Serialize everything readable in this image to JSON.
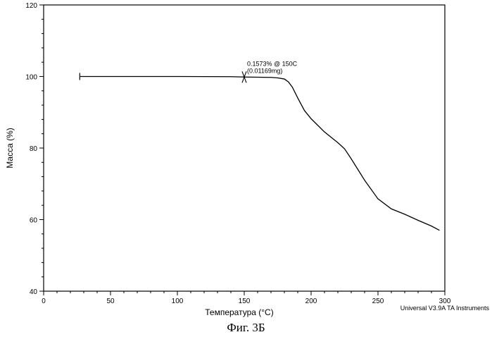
{
  "chart_data": {
    "type": "line",
    "title": "",
    "xlabel": "Температура (°C)",
    "ylabel": "Масса (%)",
    "xlim": [
      0,
      300
    ],
    "ylim": [
      40,
      120
    ],
    "xticks": [
      0,
      50,
      100,
      150,
      200,
      250,
      300
    ],
    "yticks": [
      40,
      60,
      80,
      100,
      120
    ],
    "grid": false,
    "series": [
      {
        "x": [
          27,
          60,
          100,
          140,
          150,
          160,
          170,
          175,
          180,
          183,
          186,
          190,
          195,
          200,
          210,
          220,
          225,
          230,
          240,
          250,
          260,
          270,
          280,
          290,
          296
        ],
        "y": [
          100.0,
          100.0,
          100.0,
          99.95,
          99.85,
          99.8,
          99.75,
          99.6,
          99.3,
          98.5,
          97.0,
          94.0,
          90.5,
          88.2,
          84.5,
          81.5,
          79.8,
          77.0,
          71.0,
          65.8,
          63.0,
          61.5,
          59.8,
          58.2,
          57.0
        ]
      }
    ],
    "annotation": {
      "x": 150,
      "y": 99.85,
      "line1": "0.1573% @ 150C",
      "line2": "(0.01169mg)"
    }
  },
  "figure_caption": "Фиг. 3Б",
  "credit": "Universal V3.9A TA Instruments"
}
